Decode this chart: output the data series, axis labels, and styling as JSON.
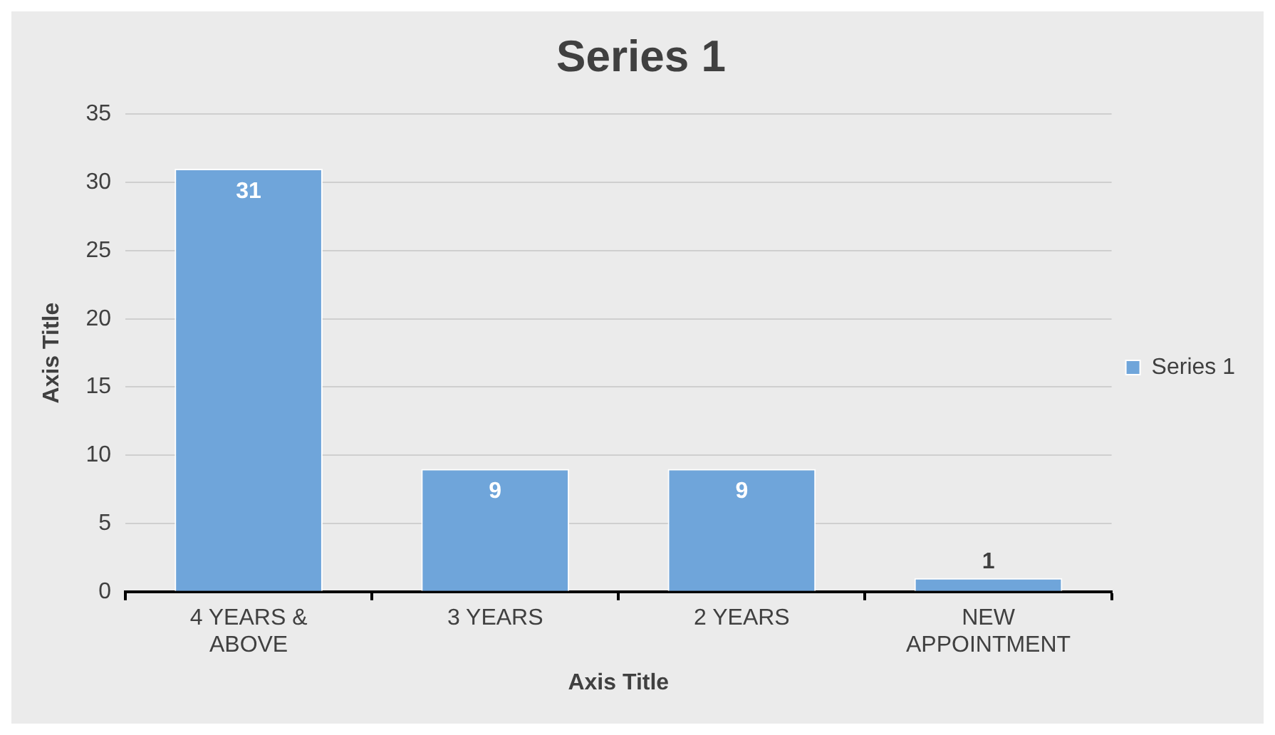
{
  "chart_data": {
    "type": "bar",
    "title": "Series 1",
    "xlabel": "Axis Title",
    "ylabel": "Axis Title",
    "categories": [
      "4 YEARS & ABOVE",
      "3 YEARS",
      "2 YEARS",
      "NEW APPOINTMENT"
    ],
    "series": [
      {
        "name": "Series 1",
        "color": "#6fa5da",
        "values": [
          31,
          9,
          9,
          1
        ]
      }
    ],
    "ylim": [
      0,
      35
    ],
    "yticks": [
      0,
      5,
      10,
      15,
      20,
      25,
      30,
      35
    ],
    "grid": "y",
    "legend": "right",
    "data_labels": true
  }
}
